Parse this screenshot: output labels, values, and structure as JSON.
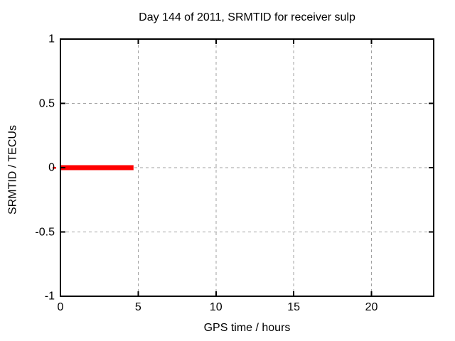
{
  "chart_data": {
    "type": "line",
    "title": "Day 144 of 2011, SRMTID for receiver sulp",
    "xlabel": "GPS time / hours",
    "ylabel": "SRMTID / TECUs",
    "xlim": [
      0,
      24
    ],
    "ylim": [
      -1,
      1
    ],
    "xticks": [
      0,
      5,
      10,
      15,
      20
    ],
    "yticks": [
      -1,
      -0.5,
      0,
      0.5,
      1
    ],
    "grid": true,
    "legend_position": "none",
    "colors": {
      "series": "#ff0000",
      "grid": "#a0a0a0",
      "border": "#000000",
      "background": "#ffffff",
      "text": "#000000"
    },
    "series": [
      {
        "name": "SRMTID",
        "color": "#ff0000",
        "points": [
          [
            0,
            0
          ],
          [
            4.7,
            0
          ]
        ]
      }
    ]
  }
}
